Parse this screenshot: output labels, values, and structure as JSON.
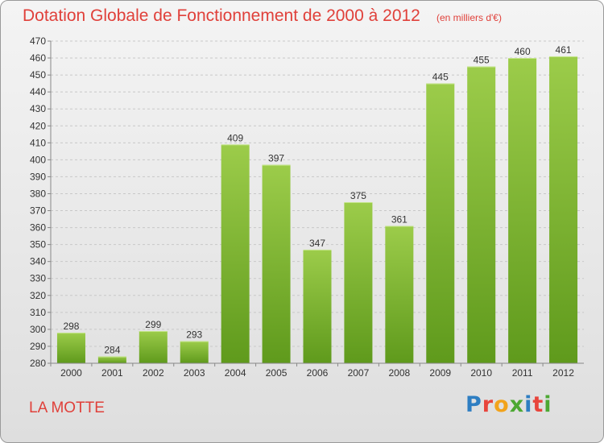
{
  "header": {
    "title": "Dotation Globale de Fonctionnement de 2000 à 2012",
    "subtitle": "(en milliers d'€)"
  },
  "footer": {
    "place": "LA MOTTE",
    "logo": "Proxiti",
    "logo_colors": [
      "#2e7ec2",
      "#e8453c",
      "#f2a31b",
      "#4ca832",
      "#2e7ec2",
      "#e8453c",
      "#4ca832"
    ]
  },
  "colors": {
    "bar_top": "#9ccc4a",
    "bar_bottom": "#5f9a1c",
    "grid": "#c8c8c8",
    "title": "#e0403a"
  },
  "chart_data": {
    "type": "bar",
    "title": "Dotation Globale de Fonctionnement de 2000 à 2012",
    "subtitle": "(en milliers d'€)",
    "xlabel": "",
    "ylabel": "",
    "categories": [
      "2000",
      "2001",
      "2002",
      "2003",
      "2004",
      "2005",
      "2006",
      "2007",
      "2008",
      "2009",
      "2010",
      "2011",
      "2012"
    ],
    "values": [
      298,
      284,
      299,
      293,
      409,
      397,
      347,
      375,
      361,
      445,
      455,
      460,
      461
    ],
    "ylim": [
      280,
      470
    ],
    "ytick_step": 10,
    "grid": true,
    "data_labels": true
  }
}
